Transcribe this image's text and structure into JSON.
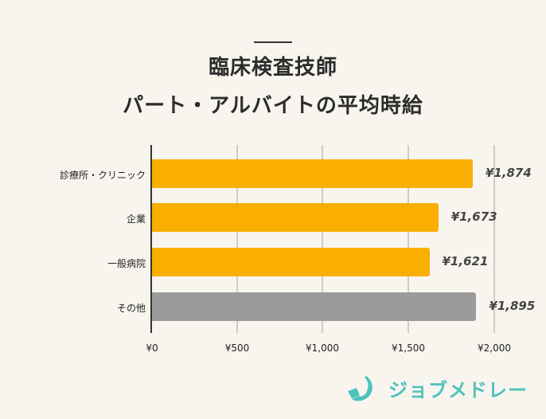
{
  "title": {
    "line1": "臨床検査技師",
    "line2": "パート・アルバイトの平均時給"
  },
  "chart_data": {
    "type": "bar",
    "orientation": "horizontal",
    "title": "臨床検査技師 パート・アルバイトの平均時給",
    "categories": [
      "診療所・クリニック",
      "企業",
      "一般病院",
      "その他"
    ],
    "values": [
      1874,
      1673,
      1621,
      1895
    ],
    "value_labels": [
      "¥1,874",
      "¥1,673",
      "¥1,621",
      "¥1,895"
    ],
    "colors": [
      "#f9ae00",
      "#f9ae00",
      "#f9ae00",
      "#9b9b9b"
    ],
    "xlabel": "",
    "ylabel": "",
    "xlim": [
      0,
      2000
    ],
    "x_ticks": [
      "¥0",
      "¥500",
      "¥1,000",
      "¥1,500",
      "¥2,000"
    ],
    "grid": true
  },
  "logo": {
    "text": "ジョブメドレー",
    "color": "#4fc2bd"
  }
}
